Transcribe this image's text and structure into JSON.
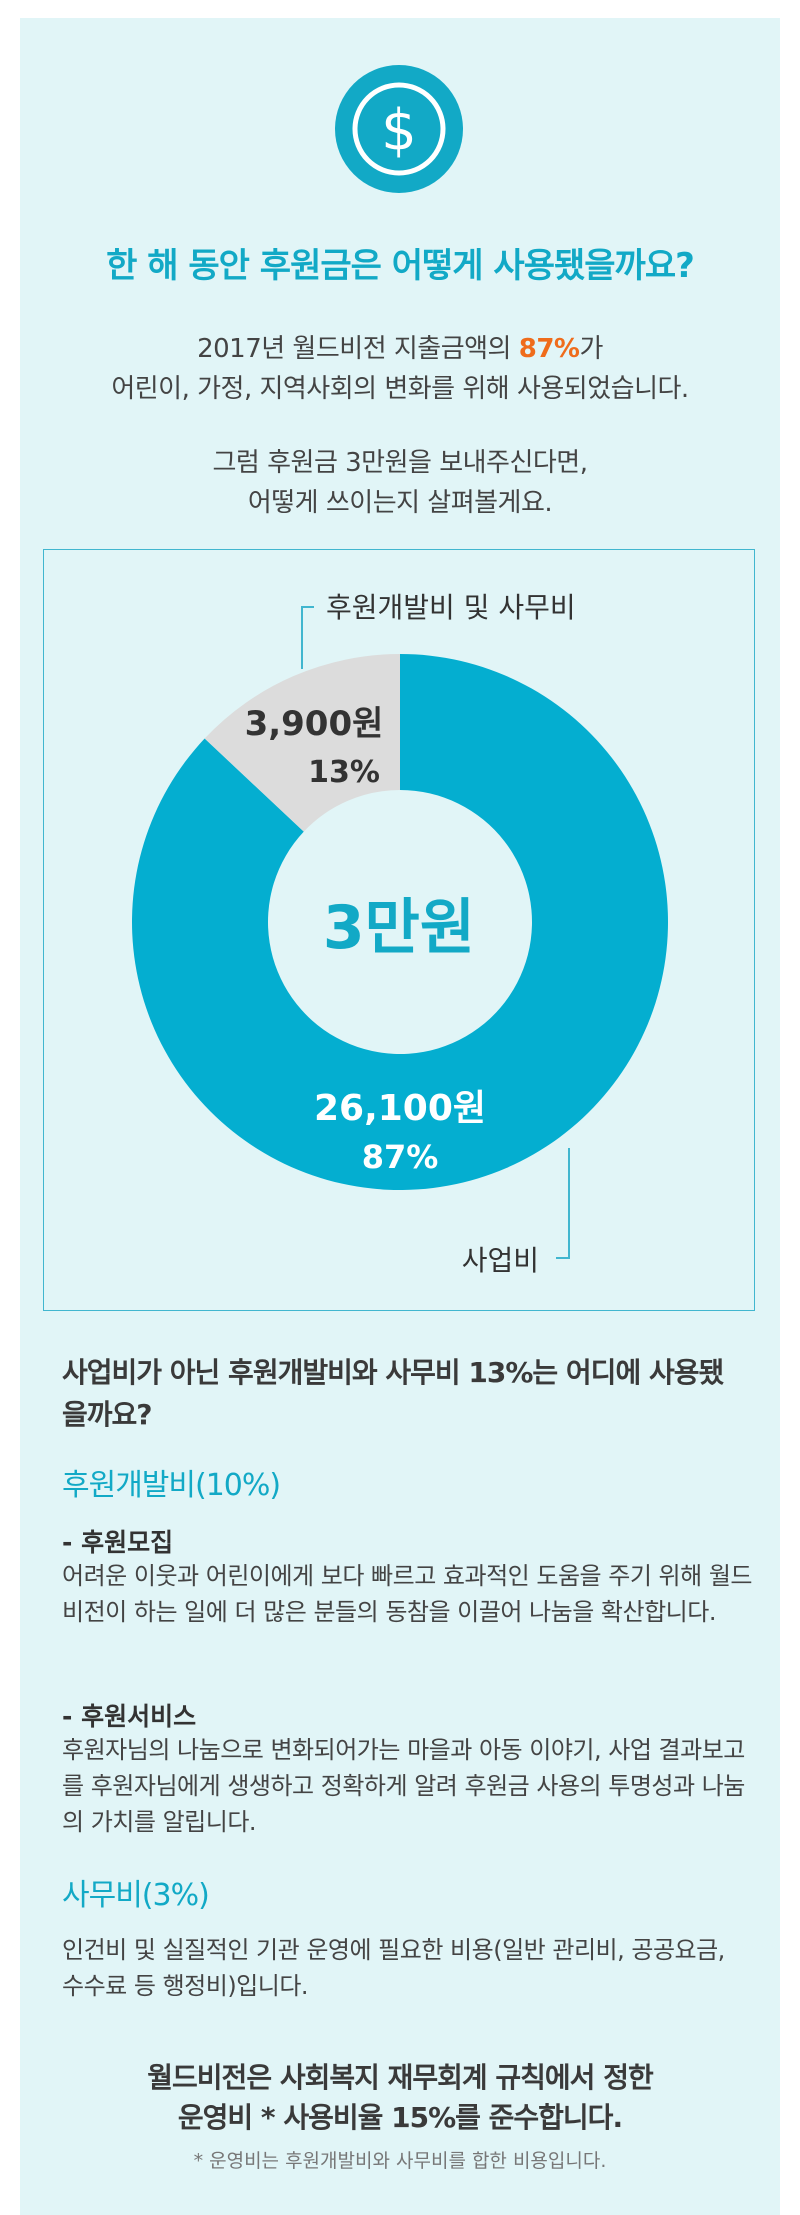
{
  "icon": "dollar-coin-icon",
  "colors": {
    "accent": "#12a9c6",
    "donut_main": "#04aed0",
    "donut_minor": "#dcdcdc",
    "highlight": "#ef6c1b"
  },
  "headline": "한 해 동안 후원금은 어떻게 사용됐을까요?",
  "intro": {
    "line1_pre": "2017년 월드비전 지출금액의 ",
    "line1_highlight": "87%",
    "line1_post": "가",
    "line2": "어린이, 가정, 지역사회의 변화를 위해 사용되었습니다.",
    "line3": "그럼 후원금 3만원을 보내주신다면,",
    "line4": "어떻게 쓰이는지 살펴볼게요."
  },
  "chart_data": {
    "type": "pie",
    "center_label": "3만원",
    "slices": [
      {
        "name": "후원개발비 및 사무비",
        "amount_label": "3,900원",
        "percent": 13,
        "percent_label": "13%"
      },
      {
        "name": "사업비",
        "amount_label": "26,100원",
        "percent": 87,
        "percent_label": "87%"
      }
    ]
  },
  "section": {
    "title": "사업비가 아닌 후원개발비와 사무비 13%는 어디에 사용됐을까요?",
    "dev": {
      "heading": "후원개발비(10%)",
      "items": [
        {
          "title": "- 후원모집",
          "text": "어려운 이웃과 어린이에게 보다 빠르고 효과적인 도움을 주기 위해 월드비전이 하는 일에 더 많은 분들의 동참을 이끌어 나눔을 확산합니다."
        },
        {
          "title": "- 후원서비스",
          "text": "후원자님의 나눔으로 변화되어가는 마을과 아동 이야기, 사업 결과보고를 후원자님에게 생생하고 정확하게 알려 후원금 사용의 투명성과 나눔의 가치를 알립니다."
        }
      ]
    },
    "office": {
      "heading": "사무비(3%)",
      "text": "인건비 및 실질적인 기관 운영에 필요한 비용(일반 관리비, 공공요금, 수수료 등 행정비)입니다."
    }
  },
  "notice": {
    "line1": "월드비전은 사회복지 재무회계 규칙에서 정한",
    "line2": "운영비 * 사용비율 15%를 준수합니다.",
    "footnote": "* 운영비는 후원개발비와 사무비를 합한 비용입니다."
  }
}
